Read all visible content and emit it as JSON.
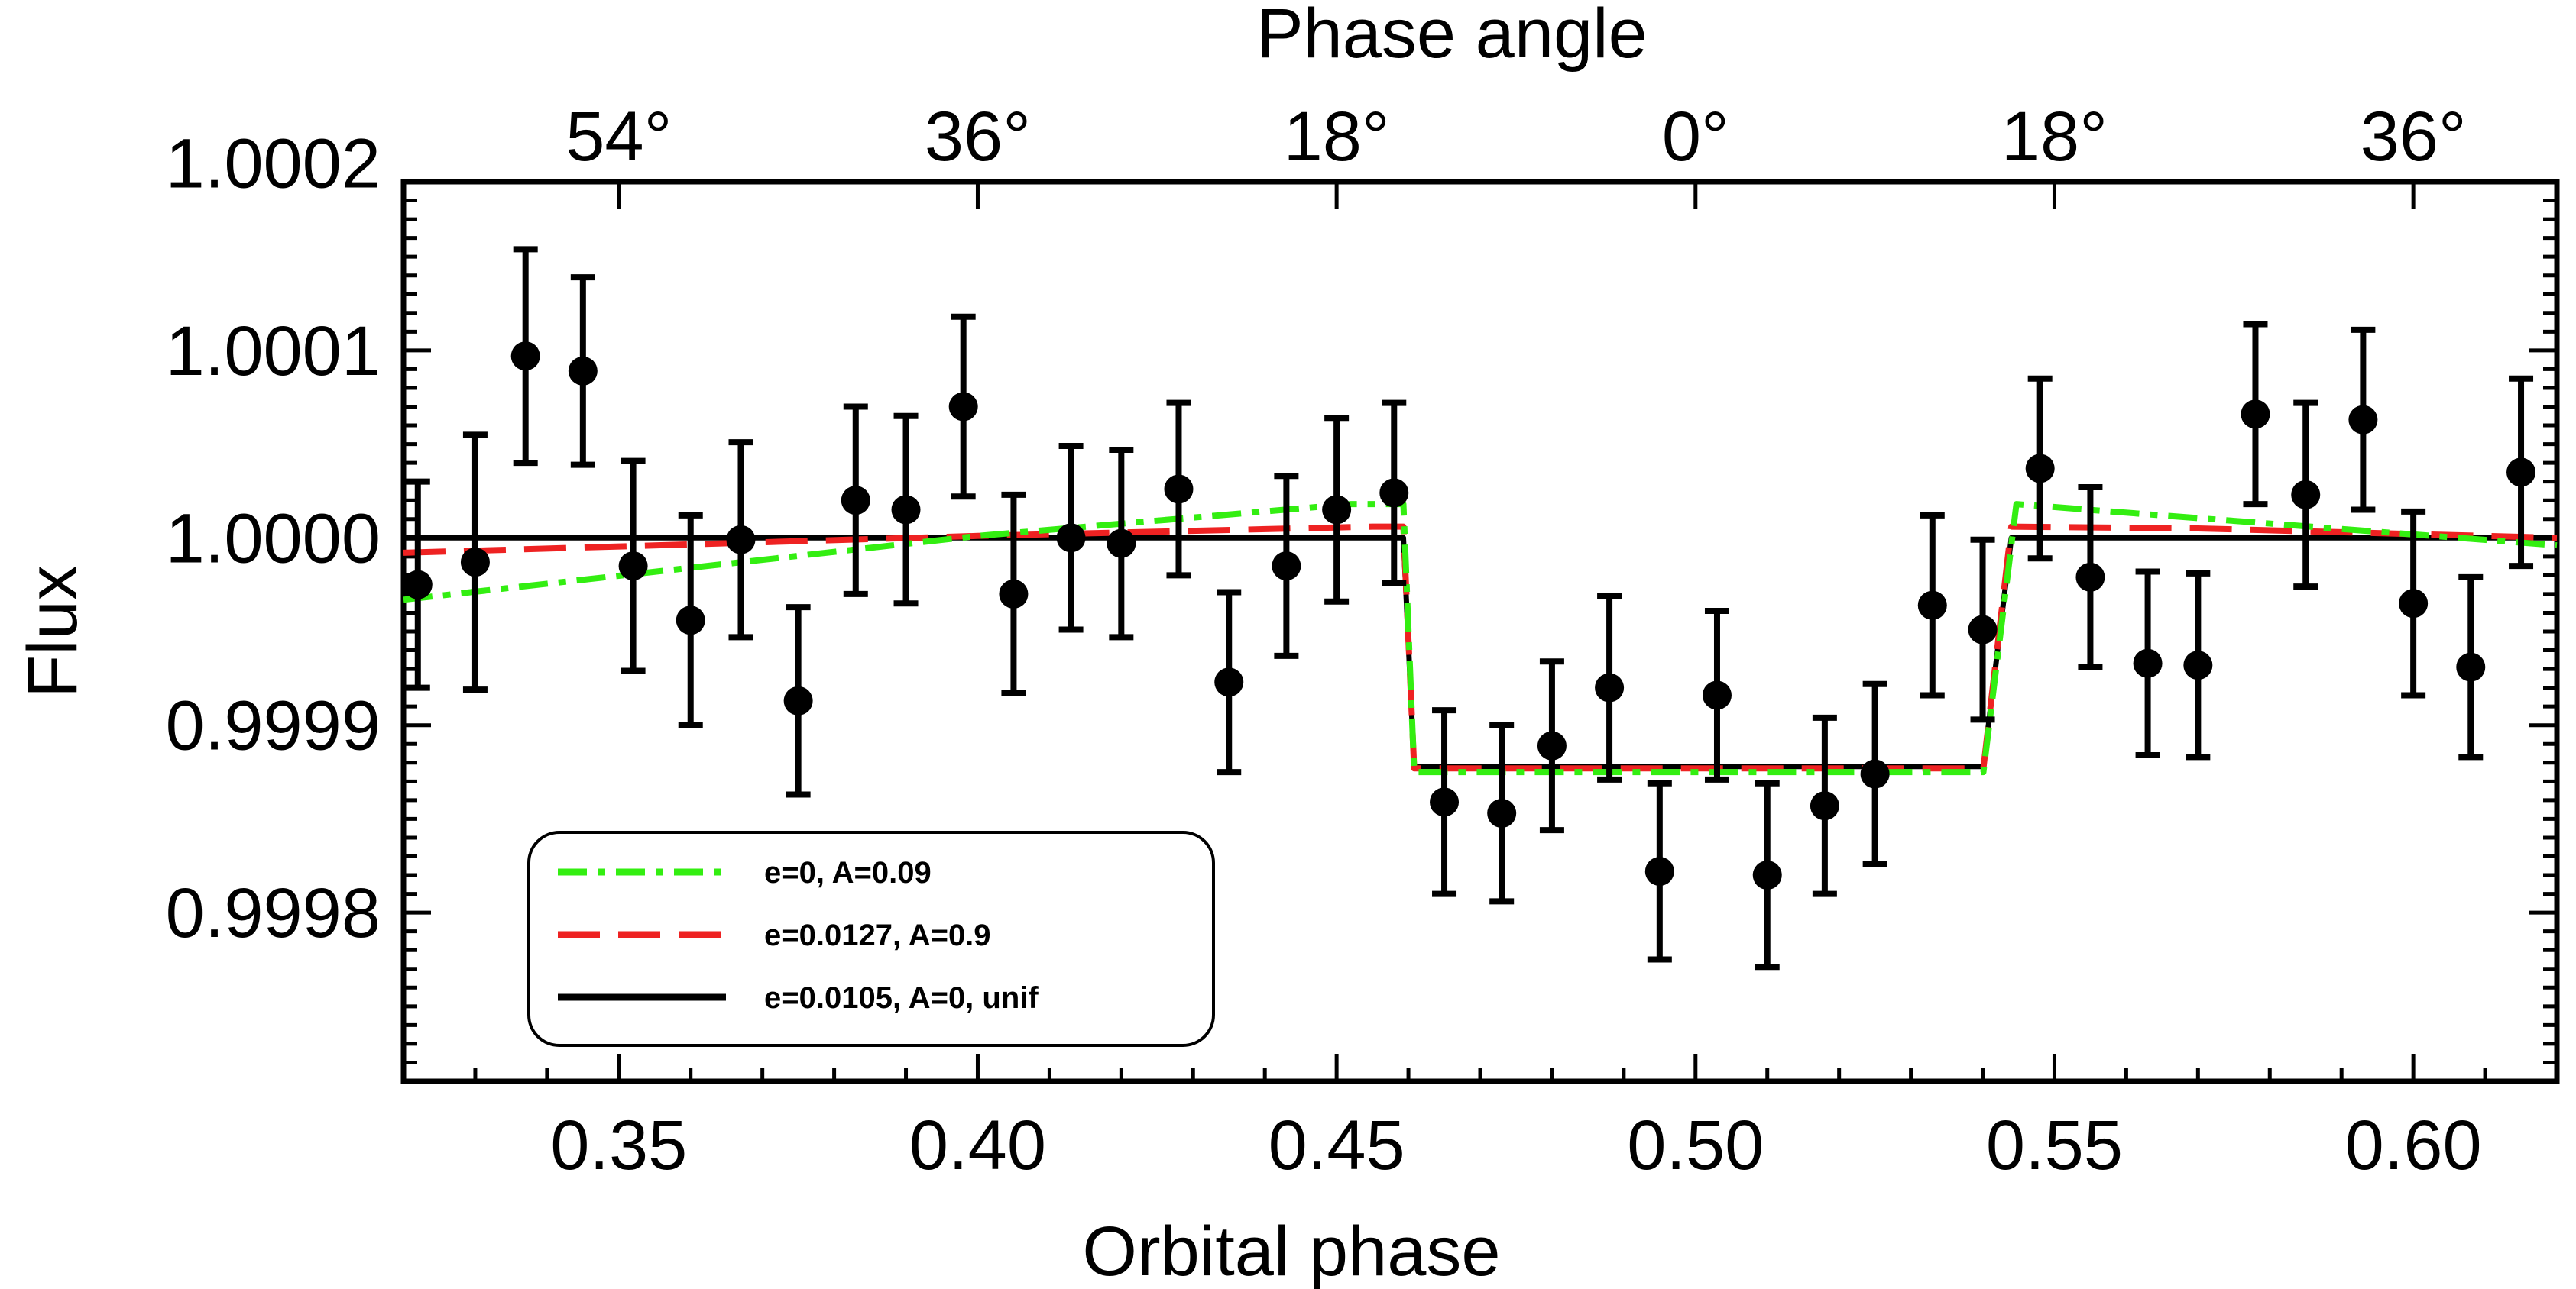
{
  "chart_data": {
    "type": "scatter",
    "xlabel": "Orbital phase",
    "ylabel": "Flux",
    "top_axis_label": "Phase angle",
    "xlim": [
      0.32,
      0.62
    ],
    "ylim": [
      0.99971,
      1.00019
    ],
    "x_ticks": [
      0.35,
      0.4,
      0.45,
      0.5,
      0.55,
      0.6
    ],
    "x_tick_labels": [
      "0.35",
      "0.40",
      "0.45",
      "0.50",
      "0.55",
      "0.60"
    ],
    "y_ticks": [
      0.9998,
      0.9999,
      1.0,
      1.0001,
      1.0002
    ],
    "y_tick_labels": [
      "0.9998",
      "0.9999",
      "1.0000",
      "1.0001",
      "1.0002"
    ],
    "top_ticks": [
      {
        "phase": 0.35,
        "label": "54°"
      },
      {
        "phase": 0.4,
        "label": "36°"
      },
      {
        "phase": 0.45,
        "label": "18°"
      },
      {
        "phase": 0.5,
        "label": "0°"
      },
      {
        "phase": 0.55,
        "label": "18°"
      },
      {
        "phase": 0.6,
        "label": "36°"
      }
    ],
    "grid": false,
    "legend_position": "bottom-left",
    "data_points": {
      "x": [
        0.322,
        0.33,
        0.337,
        0.345,
        0.352,
        0.36,
        0.367,
        0.375,
        0.383,
        0.39,
        0.398,
        0.405,
        0.413,
        0.42,
        0.428,
        0.435,
        0.443,
        0.45,
        0.458,
        0.465,
        0.473,
        0.48,
        0.488,
        0.495,
        0.503,
        0.51,
        0.518,
        0.525,
        0.533,
        0.54,
        0.548,
        0.555,
        0.563,
        0.57,
        0.578,
        0.585,
        0.593,
        0.6,
        0.608,
        0.615
      ],
      "y": [
        0.999975,
        0.999987,
        1.000097,
        1.000089,
        0.999985,
        0.999956,
        0.999999,
        0.999913,
        1.00002,
        1.000015,
        1.00007,
        0.99997,
        1.0,
        0.999997,
        1.000026,
        0.999923,
        0.999985,
        1.000015,
        1.000024,
        0.999859,
        0.999853,
        0.999889,
        0.99992,
        0.999822,
        0.999916,
        0.99982,
        0.999857,
        0.999874,
        0.999964,
        0.999951,
        1.000037,
        0.999979,
        0.999933,
        0.999932,
        1.000066,
        1.000023,
        1.000063,
        0.999965,
        0.999931,
        1.000035
      ],
      "err": [
        5.5e-05,
        6.8e-05,
        5.7e-05,
        5e-05,
        5.6e-05,
        5.6e-05,
        5.2e-05,
        5e-05,
        5e-05,
        5e-05,
        4.8e-05,
        5.3e-05,
        4.9e-05,
        5e-05,
        4.6e-05,
        4.8e-05,
        4.8e-05,
        4.9e-05,
        4.8e-05,
        4.9e-05,
        4.7e-05,
        4.5e-05,
        4.9e-05,
        4.7e-05,
        4.5e-05,
        4.9e-05,
        4.7e-05,
        4.8e-05,
        4.8e-05,
        4.8e-05,
        4.8e-05,
        4.8e-05,
        4.9e-05,
        4.9e-05,
        4.8e-05,
        4.9e-05,
        4.8e-05,
        4.9e-05,
        4.8e-05,
        5e-05
      ]
    },
    "series": [
      {
        "name": "e=0, A=0.09",
        "color": "#33ee11",
        "style": "dash-dot",
        "x": [
          0.32,
          0.4,
          0.452,
          0.4593,
          0.4608,
          0.5386,
          0.5401,
          0.5447,
          0.558,
          0.62
        ],
        "y": [
          0.999967,
          1.000001,
          1.000018,
          1.000018,
          0.999875,
          0.999875,
          0.999875,
          1.000018,
          1.000014,
          0.999996
        ]
      },
      {
        "name": "e=0.0127, A=0.9",
        "color": "#ee2222",
        "style": "dashed",
        "x": [
          0.32,
          0.4,
          0.455,
          0.4593,
          0.4608,
          0.5386,
          0.5401,
          0.544,
          0.57,
          0.62
        ],
        "y": [
          0.999992,
          1.000001,
          1.000006,
          1.000006,
          0.999877,
          0.999877,
          0.999877,
          1.000006,
          1.000005,
          1.0
        ]
      },
      {
        "name": "e=0.0105, A=0, unif",
        "color": "#000000",
        "style": "solid",
        "x": [
          0.32,
          0.4593,
          0.4608,
          0.5386,
          0.5401,
          0.544,
          0.62
        ],
        "y": [
          1.0,
          1.0,
          0.999878,
          0.999878,
          0.999878,
          1.0,
          1.0
        ]
      }
    ]
  }
}
